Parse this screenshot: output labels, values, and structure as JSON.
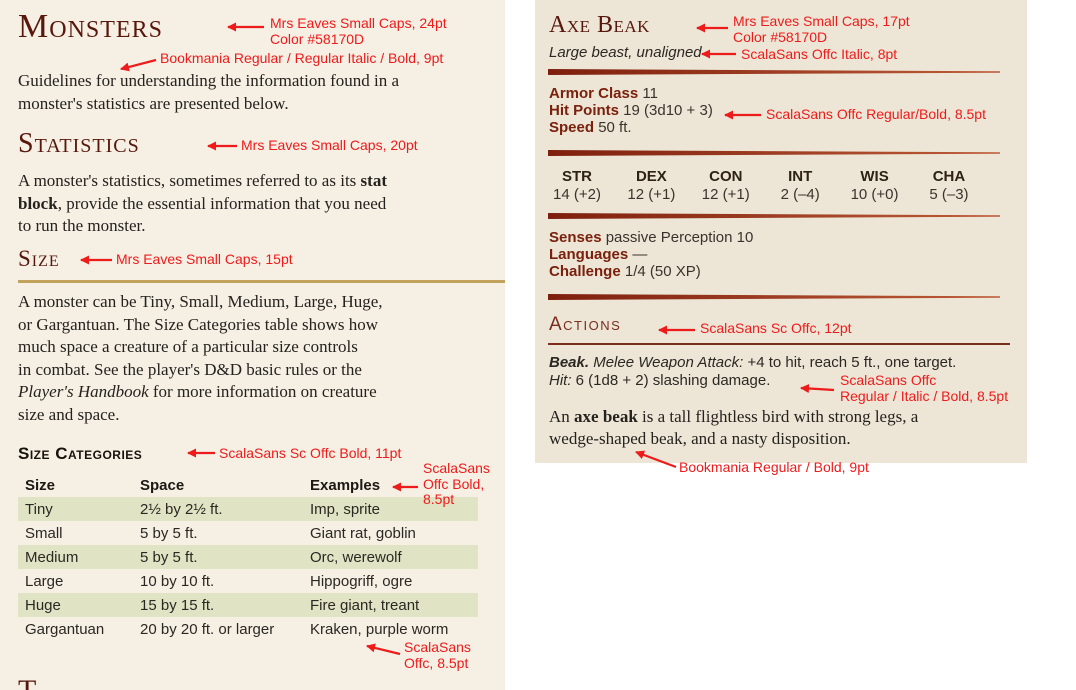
{
  "colors": {
    "page_background": "#F5EFE4",
    "statblock_background": "#EDE6D6",
    "heading_maroon": "#58170D",
    "statblock_label_maroon": "#7A200D",
    "actions_maroon": "#7A2D1D",
    "gold_rule": "#C1A35E",
    "table_stripe_green": "#E0E4C4",
    "taper_rule_red": "#7E1F0D",
    "annotation_red": "#EE1B1B"
  },
  "left": {
    "title": "Monsters",
    "intro": [
      {
        "t": "Guidelines for understanding the information found in a\nmonster's statistics are presented below."
      }
    ],
    "statistics_heading": "Statistics",
    "statistics_paragraph": [
      {
        "t": "A monster's statistics, sometimes referred to as its "
      },
      {
        "t": "stat\nblock",
        "s": "b"
      },
      {
        "t": ", provide the essential information that you need\nto run the monster."
      }
    ],
    "size_heading": "Size",
    "size_paragraph": [
      {
        "t": "A monster can be Tiny, Small, Medium, Large, Huge,\nor Gargantuan. The Size Categories table shows how\nmuch space a creature of a particular size controls\nin combat. See the player's D&D basic rules or the\n"
      },
      {
        "t": "Player's Handbook",
        "s": "i"
      },
      {
        "t": " for more information on creature\nsize and space."
      }
    ],
    "table": {
      "heading": "Size Categories",
      "columns": [
        "Size",
        "Space",
        "Examples"
      ],
      "rows": [
        {
          "size": "Tiny",
          "space": "2½ by 2½ ft.",
          "examples": "Imp, sprite"
        },
        {
          "size": "Small",
          "space": "5 by 5 ft.",
          "examples": "Giant rat, goblin"
        },
        {
          "size": "Medium",
          "space": "5 by 5 ft.",
          "examples": "Orc, werewolf"
        },
        {
          "size": "Large",
          "space": "10 by 10 ft.",
          "examples": "Hippogriff, ogre"
        },
        {
          "size": "Huge",
          "space": "15 by 15 ft.",
          "examples": "Fire giant, treant"
        },
        {
          "size": "Gargantuan",
          "space": "20 by 20 ft. or larger",
          "examples": "Kraken, purple worm"
        }
      ]
    },
    "next_heading_partial": "T"
  },
  "statblock": {
    "name": "Axe Beak",
    "meta": "Large beast, unaligned",
    "armor_class": {
      "label": "Armor Class",
      "value": "11"
    },
    "hit_points": {
      "label": "Hit Points",
      "value": "19 (3d10 + 3)"
    },
    "speed": {
      "label": "Speed",
      "value": "50 ft."
    },
    "abilities": [
      {
        "name": "STR",
        "score": "14 (+2)"
      },
      {
        "name": "DEX",
        "score": "12 (+1)"
      },
      {
        "name": "CON",
        "score": "12 (+1)"
      },
      {
        "name": "INT",
        "score": "2 (–4)"
      },
      {
        "name": "WIS",
        "score": "10 (+0)"
      },
      {
        "name": "CHA",
        "score": "5 (–3)"
      }
    ],
    "senses": {
      "label": "Senses",
      "value": "passive Perception 10"
    },
    "languages": {
      "label": "Languages",
      "value": "—"
    },
    "challenge": {
      "label": "Challenge",
      "value": "1/4 (50 XP)"
    },
    "actions_heading": "Actions",
    "beak_action": [
      {
        "t": "Beak.",
        "s": "bi"
      },
      {
        "t": " "
      },
      {
        "t": "Melee Weapon Attack:",
        "s": "i"
      },
      {
        "t": " +4 to hit, reach 5 ft., one target.\n"
      },
      {
        "t": "Hit:",
        "s": "i"
      },
      {
        "t": " 6 (1d8 + 2) slashing damage."
      }
    ],
    "description": [
      {
        "t": "An "
      },
      {
        "t": "axe beak",
        "s": "b"
      },
      {
        "t": " is a tall flightless bird with strong legs, a\nwedge-shaped beak, and a nasty disposition."
      }
    ]
  },
  "annotations": {
    "a1": {
      "lines": [
        "Mrs Eaves Small Caps, 24pt",
        "Color #58170D"
      ]
    },
    "a2": {
      "lines": [
        "Bookmania Regular / Regular Italic / Bold, 9pt"
      ]
    },
    "a3": {
      "lines": [
        "Mrs Eaves Small Caps, 20pt"
      ]
    },
    "a4": {
      "lines": [
        "Mrs Eaves Small Caps, 15pt"
      ]
    },
    "a5": {
      "lines": [
        "ScalaSans Sc Offc Bold, 11pt"
      ]
    },
    "a6": {
      "lines": [
        "ScalaSans",
        "Offc Bold,",
        "8.5pt"
      ]
    },
    "a7": {
      "lines": [
        "ScalaSans",
        "Offc, 8.5pt"
      ]
    },
    "a8": {
      "lines": [
        "Mrs Eaves Small Caps, 17pt",
        "Color #58170D"
      ]
    },
    "a9": {
      "lines": [
        "ScalaSans Offc Italic, 8pt"
      ]
    },
    "a10": {
      "lines": [
        "ScalaSans Offc Regular/Bold, 8.5pt"
      ]
    },
    "a11": {
      "lines": [
        "ScalaSans Sc Offc, 12pt"
      ]
    },
    "a12": {
      "lines": [
        "ScalaSans Offc",
        "Regular / Italic / Bold, 8.5pt"
      ]
    },
    "a13": {
      "lines": [
        "Bookmania Regular / Bold, 9pt"
      ]
    }
  }
}
